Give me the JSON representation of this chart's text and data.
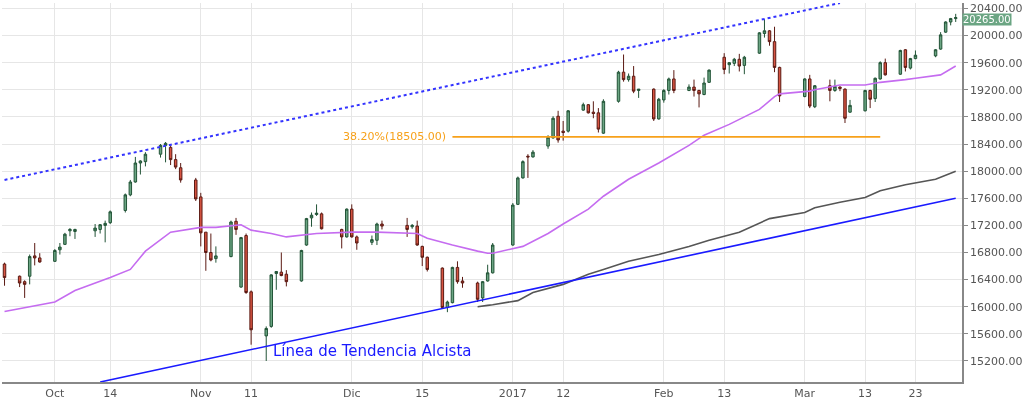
{
  "chart_data": {
    "type": "candlestick",
    "x": [
      "2016-09-23",
      "2016-09-26",
      "2016-09-27",
      "2016-09-28",
      "2016-09-29",
      "2016-09-30",
      "2016-10-03",
      "2016-10-04",
      "2016-10-05",
      "2016-10-06",
      "2016-10-07",
      "2016-10-11",
      "2016-10-12",
      "2016-10-13",
      "2016-10-14",
      "2016-10-17",
      "2016-10-18",
      "2016-10-19",
      "2016-10-20",
      "2016-10-21",
      "2016-10-24",
      "2016-10-25",
      "2016-10-26",
      "2016-10-27",
      "2016-10-28",
      "2016-10-31",
      "2016-11-01",
      "2016-11-02",
      "2016-11-03",
      "2016-11-04",
      "2016-11-07",
      "2016-11-08",
      "2016-11-09",
      "2016-11-10",
      "2016-11-11",
      "2016-11-14",
      "2016-11-15",
      "2016-11-16",
      "2016-11-17",
      "2016-11-18",
      "2016-11-21",
      "2016-11-22",
      "2016-11-23",
      "2016-11-24",
      "2016-11-25",
      "2016-11-29",
      "2016-11-30",
      "2016-12-01",
      "2016-12-02",
      "2016-12-05",
      "2016-12-06",
      "2016-12-07",
      "2016-12-12",
      "2016-12-13",
      "2016-12-14",
      "2016-12-15",
      "2016-12-16",
      "2016-12-19",
      "2016-12-20",
      "2016-12-21",
      "2016-12-22",
      "2016-12-23",
      "2016-12-26",
      "2016-12-27",
      "2016-12-28",
      "2016-12-29",
      "2017-01-02",
      "2017-01-03",
      "2017-01-04",
      "2017-01-05",
      "2017-01-06",
      "2017-01-09",
      "2017-01-10",
      "2017-01-11",
      "2017-01-12",
      "2017-01-13",
      "2017-01-16",
      "2017-01-17",
      "2017-01-18",
      "2017-01-19",
      "2017-01-20",
      "2017-01-23",
      "2017-01-24",
      "2017-01-25",
      "2017-01-26",
      "2017-01-27",
      "2017-01-30",
      "2017-01-31",
      "2017-02-01",
      "2017-02-02",
      "2017-02-03",
      "2017-02-06",
      "2017-02-07",
      "2017-02-08",
      "2017-02-09",
      "2017-02-10",
      "2017-02-13",
      "2017-02-14",
      "2017-02-15",
      "2017-02-16",
      "2017-02-17",
      "2017-02-20",
      "2017-02-21",
      "2017-02-22",
      "2017-02-23",
      "2017-02-24",
      "2017-03-01",
      "2017-03-02",
      "2017-03-03",
      "2017-03-06",
      "2017-03-07",
      "2017-03-08",
      "2017-03-09",
      "2017-03-10",
      "2017-03-13",
      "2017-03-14",
      "2017-03-15",
      "2017-03-16",
      "2017-03-17",
      "2017-03-20",
      "2017-03-21",
      "2017-03-22",
      "2017-03-23",
      "2017-03-27",
      "2017-03-28",
      "2017-03-29",
      "2017-03-30",
      "2017-03-31"
    ],
    "ohlc": [
      [
        16630,
        16650,
        16310,
        16430
      ],
      [
        16450,
        16460,
        16290,
        16350
      ],
      [
        16370,
        16390,
        16130,
        16330
      ],
      [
        16450,
        16770,
        16330,
        16740
      ],
      [
        16750,
        16940,
        16610,
        16720
      ],
      [
        16720,
        16790,
        16650,
        16660
      ],
      [
        16670,
        16850,
        16660,
        16830
      ],
      [
        16840,
        16940,
        16770,
        16880
      ],
      [
        16920,
        17090,
        16910,
        17070
      ],
      [
        17120,
        17160,
        17040,
        17140
      ],
      [
        17110,
        17150,
        17000,
        17140
      ],
      [
        17120,
        17220,
        17030,
        17160
      ],
      [
        17140,
        17220,
        17080,
        17210
      ],
      [
        17200,
        17270,
        16950,
        17230
      ],
      [
        17240,
        17420,
        17220,
        17400
      ],
      [
        17420,
        17670,
        17390,
        17650
      ],
      [
        17650,
        17870,
        17630,
        17840
      ],
      [
        17840,
        18210,
        17830,
        18120
      ],
      [
        18120,
        18160,
        17950,
        18150
      ],
      [
        18140,
        18280,
        18070,
        18250
      ],
      [
        18250,
        18400,
        18200,
        18380
      ],
      [
        18380,
        18430,
        18130,
        18410
      ],
      [
        18350,
        18380,
        18090,
        18170
      ],
      [
        18170,
        18250,
        18030,
        18060
      ],
      [
        18050,
        18120,
        17830,
        17870
      ],
      [
        17870,
        17900,
        17560,
        17590
      ],
      [
        17620,
        17680,
        16890,
        17090
      ],
      [
        17100,
        17100,
        16530,
        16800
      ],
      [
        16800,
        17080,
        16670,
        16690
      ],
      [
        16710,
        16890,
        16650,
        16750
      ],
      [
        16740,
        17270,
        16730,
        17250
      ],
      [
        17260,
        17310,
        17060,
        17140
      ],
      [
        16290,
        17030,
        16280,
        17020
      ],
      [
        17050,
        17080,
        16190,
        16210
      ],
      [
        16220,
        16240,
        15440,
        15660
      ],
      [
        15570,
        15710,
        15200,
        15680
      ],
      [
        15710,
        16480,
        15690,
        16470
      ],
      [
        16490,
        16520,
        16250,
        16520
      ],
      [
        16510,
        16800,
        16450,
        16460
      ],
      [
        16480,
        16540,
        16300,
        16370
      ],
      [
        16380,
        16840,
        16370,
        16830
      ],
      [
        16910,
        17310,
        16900,
        17300
      ],
      [
        17310,
        17390,
        17180,
        17350
      ],
      [
        17360,
        17510,
        17340,
        17380
      ],
      [
        17370,
        17390,
        17140,
        17150
      ],
      [
        17140,
        17150,
        16860,
        17030
      ],
      [
        17030,
        17450,
        17020,
        17440
      ],
      [
        17440,
        17510,
        17020,
        17030
      ],
      [
        17030,
        17050,
        16840,
        16940
      ],
      [
        16950,
        17050,
        16910,
        16990
      ],
      [
        16980,
        17240,
        16910,
        17220
      ],
      [
        17220,
        17270,
        17140,
        17190
      ],
      [
        17200,
        17310,
        17030,
        17140
      ],
      [
        17180,
        17220,
        17150,
        17200
      ],
      [
        17190,
        17270,
        16900,
        16910
      ],
      [
        16890,
        16900,
        16600,
        16730
      ],
      [
        16730,
        16740,
        16520,
        16550
      ],
      [
        16570,
        16580,
        15970,
        15990
      ],
      [
        15990,
        16090,
        15920,
        16070
      ],
      [
        16060,
        16590,
        16050,
        16580
      ],
      [
        16580,
        16670,
        16340,
        16370
      ],
      [
        16380,
        16440,
        16280,
        16350
      ],
      [
        16350,
        16370,
        16070,
        16110
      ],
      [
        16130,
        16380,
        16070,
        16370
      ],
      [
        16380,
        16620,
        16370,
        16500
      ],
      [
        16500,
        16940,
        16490,
        16910
      ],
      [
        16910,
        17530,
        16900,
        17500
      ],
      [
        17510,
        17920,
        17500,
        17900
      ],
      [
        17900,
        18160,
        17890,
        18140
      ],
      [
        18220,
        18250,
        17900,
        18210
      ],
      [
        18210,
        18310,
        18200,
        18280
      ],
      [
        18370,
        18530,
        18330,
        18500
      ],
      [
        18490,
        18810,
        18480,
        18780
      ],
      [
        18810,
        18890,
        18420,
        18460
      ],
      [
        18590,
        18740,
        18450,
        18570
      ],
      [
        18590,
        18900,
        18570,
        18890
      ],
      [
        18900,
        19010,
        18890,
        18980
      ],
      [
        18980,
        18990,
        18850,
        18860
      ],
      [
        18870,
        19030,
        18780,
        18850
      ],
      [
        18860,
        18930,
        18570,
        18620
      ],
      [
        18560,
        19060,
        18550,
        19030
      ],
      [
        19030,
        19480,
        19010,
        19460
      ],
      [
        19460,
        19720,
        19320,
        19350
      ],
      [
        19350,
        19440,
        19320,
        19400
      ],
      [
        19400,
        19550,
        19150,
        19180
      ],
      [
        19190,
        19210,
        19080,
        19210
      ],
      [
        19210,
        19220,
        18740,
        18770
      ],
      [
        18770,
        19080,
        18760,
        19060
      ],
      [
        19050,
        19210,
        19010,
        19190
      ],
      [
        19190,
        19380,
        19130,
        19360
      ],
      [
        19360,
        19490,
        19150,
        19190
      ],
      [
        19190,
        19280,
        19180,
        19240
      ],
      [
        19240,
        19350,
        19100,
        19190
      ],
      [
        19190,
        19200,
        18940,
        19140
      ],
      [
        19130,
        19380,
        19120,
        19300
      ],
      [
        19310,
        19500,
        19300,
        19490
      ],
      [
        19680,
        19740,
        19430,
        19500
      ],
      [
        19570,
        19610,
        19440,
        19600
      ],
      [
        19590,
        19670,
        19550,
        19650
      ],
      [
        19650,
        19730,
        19470,
        19550
      ],
      [
        19560,
        19700,
        19430,
        19680
      ],
      [
        19740,
        20050,
        19730,
        20040
      ],
      [
        20030,
        20240,
        19970,
        20070
      ],
      [
        20070,
        20080,
        19850,
        19910
      ],
      [
        19910,
        20130,
        19460,
        19530
      ],
      [
        19530,
        19540,
        19020,
        19110
      ],
      [
        19100,
        19370,
        19090,
        19360
      ],
      [
        19360,
        19420,
        18930,
        18960
      ],
      [
        18950,
        19270,
        18930,
        19260
      ],
      [
        19260,
        19350,
        19030,
        19190
      ],
      [
        19190,
        19350,
        19170,
        19250
      ],
      [
        19240,
        19250,
        19180,
        19220
      ],
      [
        19210,
        19220,
        18710,
        18780
      ],
      [
        18870,
        19050,
        18860,
        18970
      ],
      [
        18890,
        19200,
        18880,
        19190
      ],
      [
        19190,
        19200,
        18930,
        19060
      ],
      [
        19070,
        19380,
        19020,
        19370
      ],
      [
        19360,
        19620,
        19350,
        19600
      ],
      [
        19600,
        19660,
        19410,
        19420
      ],
      [
        19430,
        19790,
        19420,
        19780
      ],
      [
        19790,
        19800,
        19470,
        19530
      ],
      [
        19520,
        19670,
        19500,
        19660
      ],
      [
        19660,
        19780,
        19650,
        19710
      ],
      [
        19700,
        19800,
        19680,
        19790
      ],
      [
        19800,
        20050,
        19790,
        20010
      ],
      [
        20050,
        20210,
        20040,
        20200
      ],
      [
        20200,
        20260,
        20150,
        20250
      ],
      [
        20250,
        20320,
        20200,
        20265
      ]
    ],
    "series": [
      {
        "type": "line",
        "color": "#c56cf0",
        "x": [
          "2016-09-23",
          "2016-10-03",
          "2016-10-07",
          "2016-10-14",
          "2016-10-18",
          "2016-10-21",
          "2016-10-26",
          "2016-11-01",
          "2016-11-04",
          "2016-11-09",
          "2016-11-11",
          "2016-11-15",
          "2016-11-18",
          "2016-11-24",
          "2016-12-01",
          "2016-12-06",
          "2016-12-14",
          "2016-12-16",
          "2016-12-21",
          "2016-12-26",
          "2016-12-28",
          "2016-12-29",
          "2017-01-04",
          "2017-01-09",
          "2017-01-12",
          "2017-01-17",
          "2017-01-20",
          "2017-01-25",
          "2017-01-31",
          "2017-02-06",
          "2017-02-09",
          "2017-02-14",
          "2017-02-20",
          "2017-02-23",
          "2017-02-24",
          "2017-03-02",
          "2017-03-03",
          "2017-03-08",
          "2017-03-13",
          "2017-03-16",
          "2017-03-21",
          "2017-03-23",
          "2017-03-28",
          "2017-03-31"
        ],
        "values": [
          15930,
          16070,
          16240,
          16430,
          16550,
          16820,
          17100,
          17170,
          17170,
          17210,
          17130,
          17080,
          17030,
          17080,
          17100,
          17100,
          17080,
          17010,
          16910,
          16820,
          16790,
          16790,
          16890,
          17080,
          17220,
          17440,
          17630,
          17880,
          18120,
          18380,
          18530,
          18690,
          18910,
          19100,
          19140,
          19180,
          19200,
          19270,
          19270,
          19310,
          19350,
          19370,
          19420,
          19550
        ]
      },
      {
        "type": "line",
        "color": "#555555",
        "x": [
          "2016-12-26",
          "2016-12-28",
          "2016-12-29",
          "2017-01-03",
          "2017-01-06",
          "2017-01-12",
          "2017-01-17",
          "2017-01-20",
          "2017-01-25",
          "2017-01-31",
          "2017-02-06",
          "2017-02-10",
          "2017-02-16",
          "2017-02-22",
          "2017-03-01",
          "2017-03-03",
          "2017-03-08",
          "2017-03-13",
          "2017-03-16",
          "2017-03-21",
          "2017-03-27",
          "2017-03-31"
        ],
        "values": [
          16000,
          16020,
          16030,
          16090,
          16210,
          16330,
          16480,
          16550,
          16670,
          16770,
          16890,
          16980,
          17100,
          17300,
          17390,
          17460,
          17540,
          17610,
          17710,
          17800,
          17880,
          18000
        ]
      },
      {
        "type": "line",
        "color": "#1a1aff",
        "x": [
          "2016-10-12",
          "2017-03-31"
        ],
        "values": [
          14890,
          17600
        ]
      },
      {
        "type": "line",
        "color": "#3333ff",
        "line_style": "dotted",
        "x": [
          "2016-09-23",
          "2017-03-08"
        ],
        "values": [
          17870,
          20480
        ]
      },
      {
        "type": "line",
        "name": "38.20%(18505.00)",
        "color": "#f7a11a",
        "x": [
          "2016-12-21",
          "2017-03-16"
        ],
        "values": [
          18505,
          18505
        ]
      }
    ],
    "xlim": [
      "2016-09-22T12:00",
      "2017-04-01T06:00"
    ],
    "xticks": [
      {
        "value": "2016-10-03",
        "label": "Oct"
      },
      {
        "value": "2016-10-14",
        "label": "14"
      },
      {
        "value": "2016-11-01",
        "label": "Nov"
      },
      {
        "value": "2016-11-11",
        "label": "11"
      },
      {
        "value": "2016-12-01",
        "label": "Dic"
      },
      {
        "value": "2016-12-15",
        "label": "15"
      },
      {
        "value": "2017-01-02",
        "label": "2017"
      },
      {
        "value": "2017-01-12",
        "label": "12"
      },
      {
        "value": "2017-02-01",
        "label": "Feb"
      },
      {
        "value": "2017-02-13",
        "label": "13"
      },
      {
        "value": "2017-03-01",
        "label": "Mar"
      },
      {
        "value": "2017-03-13",
        "label": "13"
      },
      {
        "value": "2017-03-23",
        "label": "23"
      }
    ],
    "ylim": [
      14890,
      20480
    ],
    "yticks": [
      {
        "value": 15200,
        "label": "15200.00"
      },
      {
        "value": 15600,
        "label": "15600.00"
      },
      {
        "value": 16000,
        "label": "16000.00"
      },
      {
        "value": 16400,
        "label": "16400.00"
      },
      {
        "value": 16800,
        "label": "16800.00"
      },
      {
        "value": 17200,
        "label": "17200.00"
      },
      {
        "value": 17600,
        "label": "17600.00"
      },
      {
        "value": 18000,
        "label": "18000.00"
      },
      {
        "value": 18400,
        "label": "18400.00"
      },
      {
        "value": 18800,
        "label": "18800.00"
      },
      {
        "value": 19200,
        "label": "19200.00"
      },
      {
        "value": 19600,
        "label": "19600.00"
      },
      {
        "value": 20000,
        "label": "20000.00"
      },
      {
        "value": 20400,
        "label": "20400.00"
      }
    ],
    "annotations": [
      {
        "text": "Línea de Tendencia Alcista",
        "x": "2016-11-15",
        "y": 15350
      },
      "20265.00"
    ],
    "grid": true,
    "legend": false,
    "marker": "none"
  }
}
